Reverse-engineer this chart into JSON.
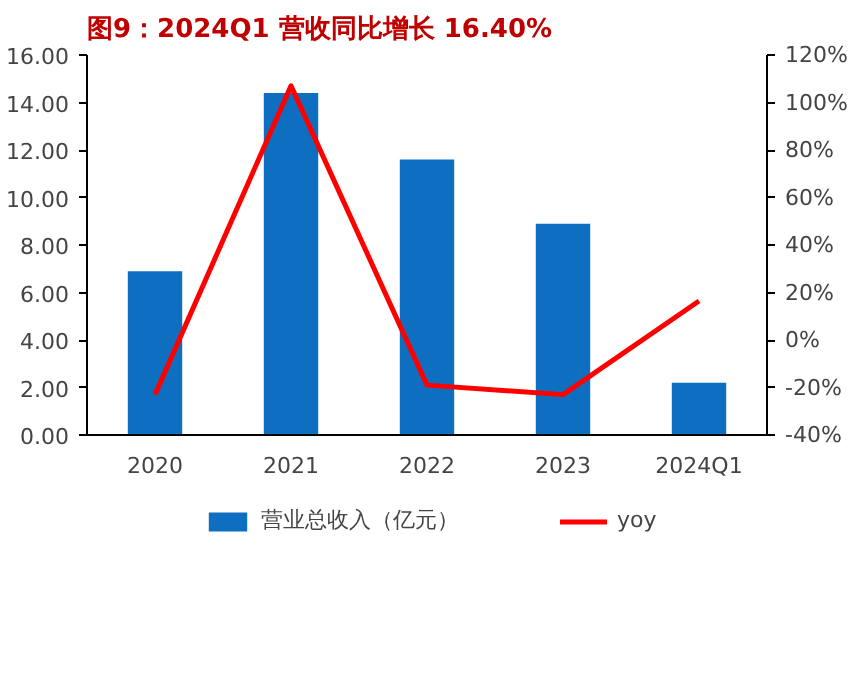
{
  "chart_data": {
    "type": "bar",
    "title": "图9：2024Q1 营收同比增长 16.40%",
    "categories": [
      "2020",
      "2021",
      "2022",
      "2023",
      "2024Q1"
    ],
    "series": [
      {
        "name": "营业总收入（亿元）",
        "color": "#0e6fc1",
        "values": [
          6.9,
          14.4,
          11.6,
          8.9,
          2.2
        ]
      },
      {
        "name": "yoy",
        "type": "line",
        "axis": "y2",
        "color": "#ff0000",
        "values": [
          -23,
          107,
          -19,
          -23,
          16.4
        ]
      }
    ],
    "ylim": [
      0,
      16
    ],
    "yticks": [
      {
        "value": 0,
        "label": "0.00"
      },
      {
        "value": 2,
        "label": "2.00"
      },
      {
        "value": 4,
        "label": "4.00"
      },
      {
        "value": 6,
        "label": "6.00"
      },
      {
        "value": 8,
        "label": "8.00"
      },
      {
        "value": 10,
        "label": "10.00"
      },
      {
        "value": 12,
        "label": "12.00"
      },
      {
        "value": 14,
        "label": "14.00"
      },
      {
        "value": 16,
        "label": "16.00"
      }
    ],
    "y2lim": [
      -40,
      120
    ],
    "y2ticks": [
      {
        "value": -40,
        "label": "-40%"
      },
      {
        "value": -20,
        "label": "-20%"
      },
      {
        "value": 0,
        "label": "0%"
      },
      {
        "value": 20,
        "label": "20%"
      },
      {
        "value": 40,
        "label": "40%"
      },
      {
        "value": 60,
        "label": "60%"
      },
      {
        "value": 80,
        "label": "80%"
      },
      {
        "value": 100,
        "label": "100%"
      },
      {
        "value": 120,
        "label": "120%"
      }
    ],
    "grid": false,
    "legend": "bottom",
    "marker": "none",
    "line_style": "solid"
  }
}
